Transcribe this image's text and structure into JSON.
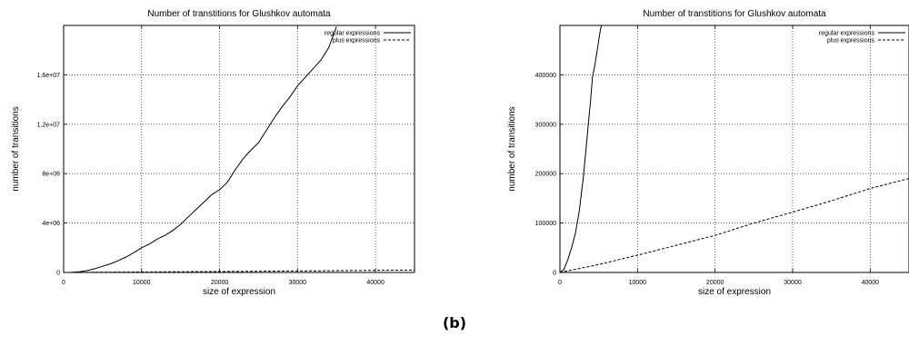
{
  "panel_label": "(b)",
  "chart_data": [
    {
      "type": "line",
      "title": "Number of transtitions for Glushkov automata",
      "xlabel": "size of expression",
      "ylabel": "number of transitions",
      "xlim": [
        0,
        45000
      ],
      "ylim": [
        0,
        20000000
      ],
      "xticks": [
        0,
        10000,
        20000,
        30000,
        40000
      ],
      "xtick_labels": [
        "0",
        "10000",
        "20000",
        "30000",
        "40000"
      ],
      "yticks": [
        0,
        4000000,
        8000000,
        12000000,
        16000000
      ],
      "ytick_labels": [
        "0",
        "4e+06",
        "8e+06",
        "1.2e+07",
        "1.6e+07"
      ],
      "grid": true,
      "legend_position": "top-right",
      "series": [
        {
          "name": "regular expressions",
          "style": "solid",
          "x": [
            0,
            1000,
            2000,
            3000,
            4000,
            5000,
            6000,
            7000,
            8000,
            9000,
            10000,
            11000,
            12000,
            13000,
            14000,
            15000,
            16000,
            17000,
            18000,
            19000,
            20000,
            21000,
            22000,
            23000,
            24000,
            25000,
            26000,
            27000,
            28000,
            29000,
            30000,
            31000,
            32000,
            33000,
            34000,
            35000
          ],
          "y": [
            0,
            10000,
            60000,
            150000,
            300000,
            500000,
            700000,
            950000,
            1250000,
            1600000,
            2000000,
            2300000,
            2700000,
            3000000,
            3400000,
            3900000,
            4500000,
            5100000,
            5700000,
            6300000,
            6700000,
            7300000,
            8300000,
            9200000,
            9900000,
            10500000,
            11500000,
            12500000,
            13400000,
            14200000,
            15100000,
            15800000,
            16500000,
            17200000,
            18200000,
            19900000
          ]
        },
        {
          "name": "plus expressions",
          "style": "dashed",
          "x": [
            0,
            10000,
            20000,
            30000,
            40000,
            45000
          ],
          "y": [
            0,
            35000,
            75000,
            120000,
            170000,
            190000
          ]
        }
      ]
    },
    {
      "type": "line",
      "title": "Number of transtitions for Glushkov automata",
      "xlabel": "size of expression",
      "ylabel": "number of transitions",
      "xlim": [
        0,
        45000
      ],
      "ylim": [
        0,
        500000
      ],
      "xticks": [
        0,
        10000,
        20000,
        30000,
        40000
      ],
      "xtick_labels": [
        "0",
        "10000",
        "20000",
        "30000",
        "40000"
      ],
      "yticks": [
        0,
        100000,
        200000,
        300000,
        400000
      ],
      "ytick_labels": [
        "0",
        "100000",
        "200000",
        "300000",
        "400000"
      ],
      "grid": true,
      "legend_position": "top-right",
      "series": [
        {
          "name": "regular expressions",
          "style": "solid",
          "x": [
            0,
            500,
            1000,
            1500,
            2000,
            2500,
            2800,
            3000,
            3300,
            3600,
            3900,
            4200,
            4500,
            4800,
            5200,
            5500
          ],
          "y": [
            0,
            6000,
            25000,
            50000,
            80000,
            125000,
            165000,
            190000,
            240000,
            290000,
            340000,
            395000,
            420000,
            450000,
            490000,
            510000
          ]
        },
        {
          "name": "plus expressions",
          "style": "dashed",
          "x": [
            0,
            5000,
            10000,
            15000,
            20000,
            25000,
            30000,
            35000,
            40000,
            45000
          ],
          "y": [
            0,
            16000,
            35000,
            55000,
            75000,
            100000,
            122000,
            145000,
            170000,
            190000
          ]
        }
      ]
    }
  ]
}
